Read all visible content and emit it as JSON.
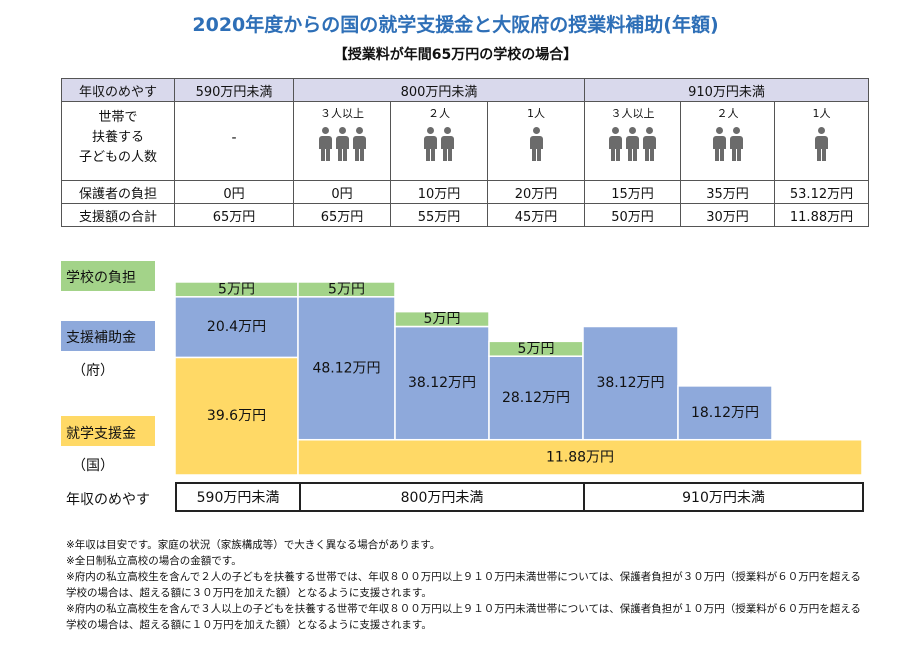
{
  "title": "2020年度からの国の就学支援金と大阪府の授業料補助(年額)",
  "subtitle": "【授業料が年間65万円の学校の場合】",
  "table": {
    "header_label": "年収のめやす",
    "groups": [
      "590万円未満",
      "800万円未満",
      "910万円未満"
    ],
    "kids_label_lines": [
      "世帯で",
      "扶養する",
      "子どもの人数"
    ],
    "kids_counts": [
      "-",
      "３人以上",
      "２人",
      "1人",
      "３人以上",
      "２人",
      "1人"
    ],
    "kids_figures": [
      0,
      3,
      2,
      1,
      3,
      2,
      1
    ],
    "guardian_label": "保護者の負担",
    "guardian_values": [
      "0円",
      "0円",
      "10万円",
      "20万円",
      "15万円",
      "35万円",
      "53.12万円"
    ],
    "support_label": "支援額の合計",
    "support_values": [
      "65万円",
      "65万円",
      "55万円",
      "45万円",
      "50万円",
      "30万円",
      "11.88万円"
    ]
  },
  "legend": {
    "school": "学校の負担",
    "pref_line1": "支援補助金",
    "pref_line2": "（府）",
    "nation_line1": "就学支援金",
    "nation_line2": "（国）"
  },
  "colors": {
    "school": "#a3d389",
    "pref": "#8ea9db",
    "nation": "#ffd966",
    "header_bg": "#d9d9ec",
    "title": "#2e6fb7"
  },
  "chart_data": {
    "type": "bar",
    "stacked": true,
    "unit": "万円",
    "categories": [
      "590万円未満",
      "800万円未満 3人以上",
      "800万円未満 2人",
      "800万円未満 1人",
      "910万円未満 3人以上",
      "910万円未満 2人",
      "910万円未満 1人"
    ],
    "series": [
      {
        "name": "就学支援金（国）",
        "values": [
          39.6,
          11.88,
          11.88,
          11.88,
          11.88,
          11.88,
          11.88
        ],
        "labels": [
          "39.6万円",
          "11.88万円",
          "",
          "",
          "",
          "",
          ""
        ]
      },
      {
        "name": "支援補助金（府）",
        "values": [
          20.4,
          48.12,
          38.12,
          28.12,
          38.12,
          18.12,
          0
        ],
        "labels": [
          "20.4万円",
          "48.12万円",
          "38.12万円",
          "28.12万円",
          "38.12万円",
          "18.12万円",
          ""
        ]
      },
      {
        "name": "学校の負担",
        "values": [
          5,
          5,
          5,
          5,
          0,
          0,
          0
        ],
        "labels": [
          "5万円",
          "5万円",
          "5万円",
          "5万円",
          "",
          "",
          ""
        ]
      }
    ],
    "ylim": [
      0,
      65
    ]
  },
  "axis": {
    "label": "年収のめやす",
    "groups": [
      "590万円未満",
      "800万円未満",
      "910万円未満"
    ]
  },
  "notes": [
    "※年収は目安です。家庭の状況（家族構成等）で大きく異なる場合があります。",
    "※全日制私立高校の場合の金額です。",
    "※府内の私立高校生を含んで２人の子どもを扶養する世帯では、年収８００万円以上９１０万円未満世帯については、保護者負担が３０万円（授業料が６０万円を超える学校の場合は、超える額に３０万円を加えた額）となるように支援されます。",
    "※府内の私立高校生を含んで３人以上の子どもを扶養する世帯で年収８００万円以上９１０万円未満世帯については、保護者負担が１０万円（授業料が６０万円を超える学校の場合は、超える額に１０万円を加えた額）となるように支援されます。"
  ]
}
